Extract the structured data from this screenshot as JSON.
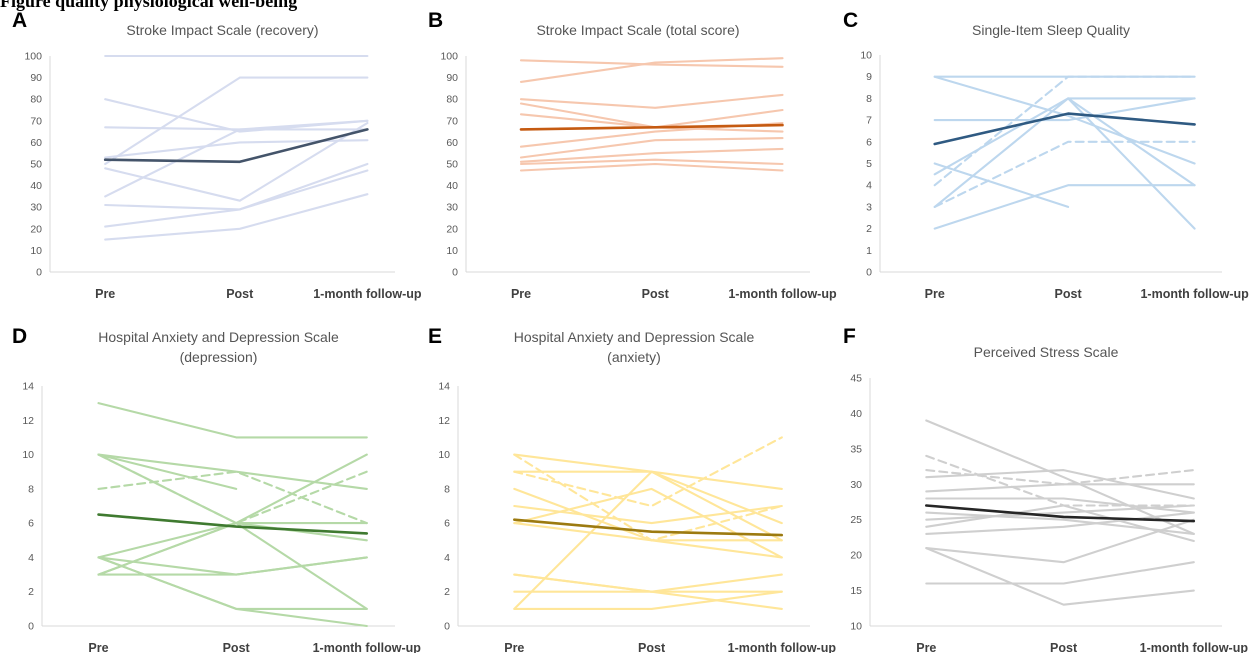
{
  "caption": "Figure                    quality               physiological well-being",
  "chart_data": [
    {
      "panel": "A",
      "type": "line",
      "title": [
        "Stroke Impact Scale (recovery)"
      ],
      "categories": [
        "Pre",
        "Post",
        "1-month follow-up"
      ],
      "ylim": [
        0,
        100
      ],
      "yticks": [
        0,
        10,
        20,
        30,
        40,
        50,
        60,
        70,
        80,
        90,
        100
      ],
      "colors": {
        "individual": "#d6dcef",
        "mean": "#44546a"
      },
      "series": [
        {
          "values": [
            100,
            100,
            100
          ]
        },
        {
          "values": [
            80,
            65,
            70
          ]
        },
        {
          "values": [
            67,
            66,
            66
          ]
        },
        {
          "values": [
            50,
            90,
            90
          ]
        },
        {
          "values": [
            53,
            60,
            61
          ]
        },
        {
          "values": [
            48,
            33,
            69
          ]
        },
        {
          "values": [
            35,
            66,
            70
          ]
        },
        {
          "values": [
            31,
            29,
            47
          ]
        },
        {
          "values": [
            21,
            29,
            50
          ]
        },
        {
          "values": [
            15,
            20,
            36
          ]
        },
        {
          "values": [
            52,
            51,
            66
          ],
          "mean": true
        }
      ]
    },
    {
      "panel": "B",
      "type": "line",
      "title": [
        "Stroke Impact Scale (total score)"
      ],
      "categories": [
        "Pre",
        "Post",
        "1-month follow-up"
      ],
      "ylim": [
        0,
        100
      ],
      "yticks": [
        0,
        10,
        20,
        30,
        40,
        50,
        60,
        70,
        80,
        90,
        100
      ],
      "colors": {
        "individual": "#f6c7ae",
        "mean": "#c55a11"
      },
      "series": [
        {
          "values": [
            98,
            96,
            95
          ]
        },
        {
          "values": [
            88,
            97,
            99
          ]
        },
        {
          "values": [
            80,
            76,
            82
          ]
        },
        {
          "values": [
            78,
            67,
            65
          ]
        },
        {
          "values": [
            73,
            67,
            75
          ]
        },
        {
          "values": [
            58,
            65,
            69
          ]
        },
        {
          "values": [
            53,
            61,
            62
          ]
        },
        {
          "values": [
            51,
            55,
            57
          ]
        },
        {
          "values": [
            50,
            52,
            50
          ]
        },
        {
          "values": [
            47,
            50,
            47
          ]
        },
        {
          "values": [
            66,
            67,
            68
          ],
          "mean": true
        }
      ]
    },
    {
      "panel": "C",
      "type": "line",
      "title": [
        "Single-Item Sleep Quality"
      ],
      "categories": [
        "Pre",
        "Post",
        "1-month follow-up"
      ],
      "ylim": [
        0,
        10
      ],
      "yticks": [
        0,
        1,
        2,
        3,
        4,
        5,
        6,
        7,
        8,
        9,
        10
      ],
      "colors": {
        "individual": "#bdd7ee",
        "mean": "#2f5a82"
      },
      "series": [
        {
          "values": [
            9,
            9,
            9
          ]
        },
        {
          "values": [
            9,
            7.2,
            5
          ]
        },
        {
          "values": [
            7,
            7,
            8
          ]
        },
        {
          "values": [
            5,
            3,
            null
          ]
        },
        {
          "values": [
            4.5,
            8,
            4
          ]
        },
        {
          "values": [
            3,
            8,
            8
          ]
        },
        {
          "values": [
            2,
            4,
            4
          ]
        },
        {
          "values": [
            null,
            8,
            2
          ]
        },
        {
          "values": [
            4,
            9,
            9
          ],
          "dashed": true
        },
        {
          "values": [
            3,
            6,
            6
          ],
          "dashed": true
        },
        {
          "values": [
            5.9,
            7.3,
            6.8
          ],
          "mean": true
        }
      ]
    },
    {
      "panel": "D",
      "type": "line",
      "title": [
        "Hospital Anxiety and Depression Scale",
        "(depression)"
      ],
      "categories": [
        "Pre",
        "Post",
        "1-month follow-up"
      ],
      "ylim": [
        0,
        14
      ],
      "yticks": [
        0,
        2,
        4,
        6,
        8,
        10,
        12,
        14
      ],
      "colors": {
        "individual": "#b5d9a7",
        "mean": "#3f7a30"
      },
      "series": [
        {
          "values": [
            13,
            11,
            11
          ]
        },
        {
          "values": [
            10,
            8,
            null
          ]
        },
        {
          "values": [
            10,
            6,
            6
          ]
        },
        {
          "values": [
            10,
            9,
            8
          ]
        },
        {
          "values": [
            4,
            6,
            10
          ]
        },
        {
          "values": [
            4,
            3,
            4
          ]
        },
        {
          "values": [
            3,
            6,
            1
          ]
        },
        {
          "values": [
            3,
            3,
            4
          ]
        },
        {
          "values": [
            4,
            1,
            1
          ]
        },
        {
          "values": [
            4,
            1,
            0
          ]
        },
        {
          "values": [
            3,
            6,
            5
          ]
        },
        {
          "values": [
            8,
            9,
            6
          ],
          "dashed": true
        },
        {
          "values": [
            10,
            6,
            9
          ],
          "dashed": true
        },
        {
          "values": [
            6.5,
            5.8,
            5.4
          ],
          "mean": true
        }
      ]
    },
    {
      "panel": "E",
      "type": "line",
      "title": [
        "Hospital Anxiety and Depression Scale",
        "(anxiety)"
      ],
      "categories": [
        "Pre",
        "Post",
        "1-month follow-up"
      ],
      "ylim": [
        0,
        14
      ],
      "yticks": [
        0,
        2,
        4,
        6,
        8,
        10,
        12,
        14
      ],
      "colors": {
        "individual": "#ffe699",
        "mean": "#9c7a10"
      },
      "series": [
        {
          "values": [
            10,
            9,
            8
          ]
        },
        {
          "values": [
            9,
            9,
            6
          ]
        },
        {
          "values": [
            8,
            5,
            4
          ]
        },
        {
          "values": [
            7,
            6,
            7
          ]
        },
        {
          "values": [
            6,
            8,
            4
          ]
        },
        {
          "values": [
            3,
            2,
            2
          ]
        },
        {
          "values": [
            2,
            2,
            3
          ]
        },
        {
          "values": [
            1,
            9,
            5
          ]
        },
        {
          "values": [
            1,
            1,
            2
          ]
        },
        {
          "values": [
            3,
            2,
            1
          ]
        },
        {
          "values": [
            6,
            5,
            5
          ]
        },
        {
          "values": [
            10,
            5,
            7
          ],
          "dashed": true
        },
        {
          "values": [
            9,
            7,
            11
          ],
          "dashed": true
        },
        {
          "values": [
            6.2,
            5.5,
            5.3
          ],
          "mean": true
        }
      ]
    },
    {
      "panel": "F",
      "type": "line",
      "title": [
        "Perceived Stress Scale"
      ],
      "categories": [
        "Pre",
        "Post",
        "1-month follow-up"
      ],
      "ylim": [
        10,
        45
      ],
      "yticks": [
        10,
        15,
        20,
        25,
        30,
        35,
        40,
        45
      ],
      "colors": {
        "individual": "#cfcfcf",
        "mean": "#262626"
      },
      "series": [
        {
          "values": [
            39,
            31,
            23
          ]
        },
        {
          "values": [
            31,
            32,
            28
          ]
        },
        {
          "values": [
            29,
            30,
            30
          ]
        },
        {
          "values": [
            28,
            28,
            26
          ]
        },
        {
          "values": [
            26,
            25,
            23
          ]
        },
        {
          "values": [
            25,
            26,
            27
          ]
        },
        {
          "values": [
            24,
            27,
            22
          ]
        },
        {
          "values": [
            23,
            24,
            26
          ]
        },
        {
          "values": [
            21,
            13,
            15
          ]
        },
        {
          "values": [
            21,
            19,
            25
          ]
        },
        {
          "values": [
            16,
            16,
            19
          ]
        },
        {
          "values": [
            34,
            27,
            27
          ],
          "dashed": true
        },
        {
          "values": [
            32,
            30,
            32
          ],
          "dashed": true
        },
        {
          "values": [
            27,
            25.4,
            24.8
          ],
          "mean": true
        }
      ]
    }
  ]
}
